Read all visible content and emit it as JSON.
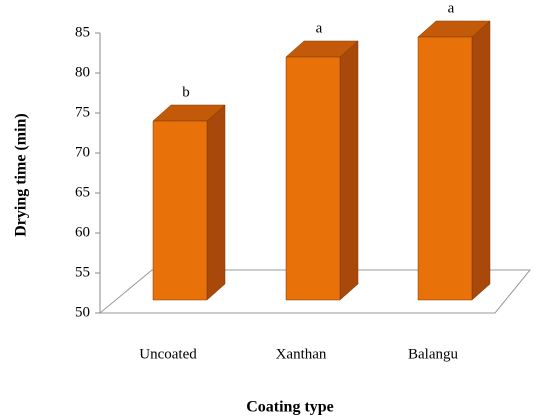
{
  "chart_data": {
    "type": "bar3d",
    "x_label": "Coating type",
    "y_label": "Drying time (min)",
    "categories": [
      "Uncoated",
      "Xanthan",
      "Balangu"
    ],
    "values": [
      74,
      82,
      84.5
    ],
    "annotations": [
      "b",
      "a",
      "a"
    ],
    "color": "#e8710a",
    "ylim": [
      50,
      85
    ],
    "yticks": [
      50,
      55,
      60,
      65,
      70,
      75,
      80,
      85
    ]
  }
}
